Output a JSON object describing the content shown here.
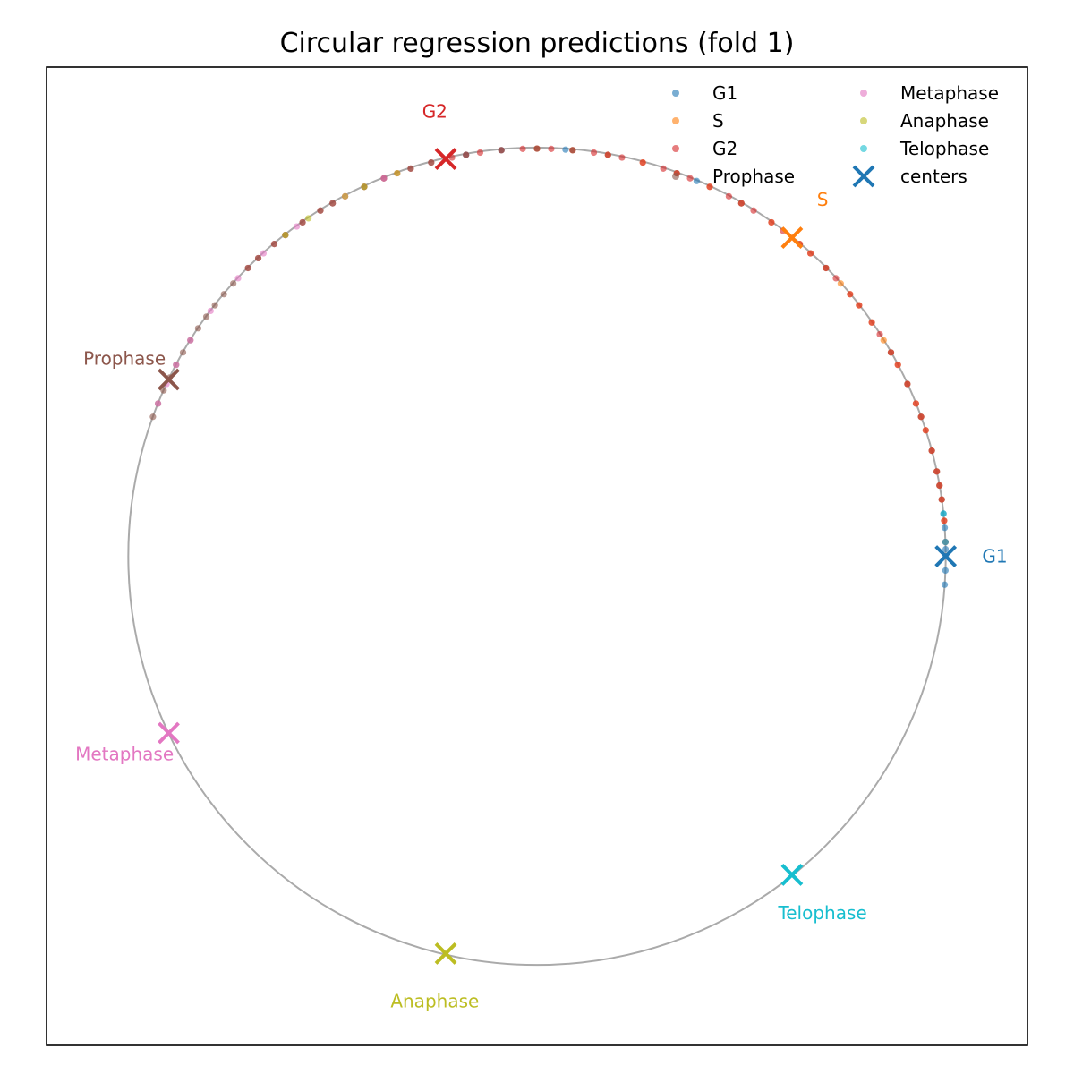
{
  "chart_data": {
    "type": "scatter",
    "title": "Circular regression predictions (fold 1)",
    "xlabel": "",
    "ylabel": "",
    "xlim": [
      -1.2,
      1.2
    ],
    "ylim": [
      -1.2,
      1.2
    ],
    "grid": false,
    "reference_circle": {
      "radius": 1.0,
      "color": "#aaaaaa"
    },
    "legend": {
      "placement": "top-right",
      "columns": 2,
      "entries": [
        "G1",
        "S",
        "G2",
        "Prophase",
        "Metaphase",
        "Anaphase",
        "Telophase",
        "centers"
      ]
    },
    "series": [
      {
        "name": "G1",
        "color": "#1f77b4",
        "angles_deg": [
          0,
          -2,
          -4,
          1,
          2,
          4,
          6,
          8,
          10,
          12,
          15,
          20,
          25,
          30,
          45,
          60,
          67,
          70,
          80,
          86,
          95,
          100
        ]
      },
      {
        "name": "S",
        "color": "#ff7f0e",
        "angles_deg": [
          5,
          8,
          10,
          12,
          15,
          18,
          20,
          22,
          25,
          28,
          30,
          32,
          35,
          38,
          40,
          42,
          45,
          48,
          50,
          55,
          60,
          65,
          70,
          75,
          80,
          85,
          90
        ]
      },
      {
        "name": "G2",
        "color": "#d62728",
        "angles_deg": [
          2,
          5,
          8,
          10,
          12,
          15,
          18,
          20,
          22,
          25,
          28,
          30,
          33,
          35,
          38,
          40,
          43,
          45,
          48,
          50,
          53,
          55,
          58,
          60,
          62,
          65,
          68,
          70,
          72,
          75,
          78,
          80,
          82,
          85,
          88,
          90,
          92,
          95,
          98,
          100,
          102,
          105,
          108,
          110,
          112,
          115,
          118,
          120,
          122,
          125,
          128,
          130,
          133,
          135
        ]
      },
      {
        "name": "Prophase",
        "color": "#8c564b",
        "angles_deg": [
          85,
          90,
          95,
          100,
          105,
          108,
          112,
          115,
          120,
          122,
          125,
          128,
          130,
          133,
          135,
          138,
          140,
          142,
          144,
          146,
          148,
          150,
          152,
          154,
          156,
          158,
          160
        ]
      },
      {
        "name": "Metaphase",
        "color": "#e377c2",
        "angles_deg": [
          112,
          118,
          126,
          132,
          137,
          143,
          148,
          152,
          155,
          158
        ]
      },
      {
        "name": "Anaphase",
        "color": "#bcbd22",
        "angles_deg": [
          110,
          115,
          118,
          124,
          128
        ]
      },
      {
        "name": "Telophase",
        "color": "#17becf",
        "angles_deg": [
          2,
          6
        ]
      }
    ],
    "centers": [
      {
        "name": "G1",
        "color": "#1f77b4",
        "angle_deg": 0
      },
      {
        "name": "S",
        "color": "#ff7f0e",
        "angle_deg": 51.4
      },
      {
        "name": "G2",
        "color": "#d62728",
        "angle_deg": 102.9
      },
      {
        "name": "Prophase",
        "color": "#8c564b",
        "angle_deg": 154.3
      },
      {
        "name": "Metaphase",
        "color": "#e377c2",
        "angle_deg": 205.7
      },
      {
        "name": "Anaphase",
        "color": "#bcbd22",
        "angle_deg": 257.1
      },
      {
        "name": "Telophase",
        "color": "#17becf",
        "angle_deg": 308.6
      }
    ]
  }
}
